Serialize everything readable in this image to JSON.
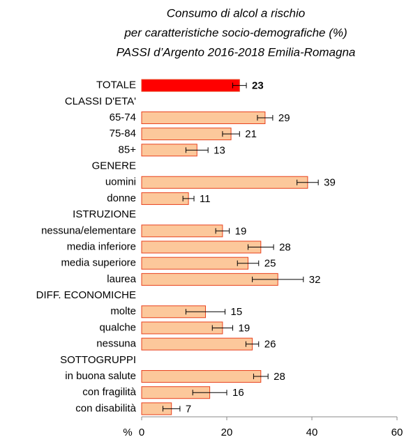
{
  "chart_data": {
    "type": "bar",
    "orientation": "horizontal",
    "title": [
      "Consumo di alcol a rischio",
      "per caratteristiche socio-demografiche (%)",
      "PASSI d’Argento 2016-2018  Emilia-Romagna"
    ],
    "xlabel": "%",
    "categories": [
      "TOTALE",
      "CLASSI D'ETA'",
      "65-74",
      "75-84",
      "85+",
      "GENERE",
      "uomini",
      "donne",
      "ISTRUZIONE",
      "nessuna/elementare",
      "media inferiore",
      "media superiore",
      "laurea",
      "DIFF. ECONOMICHE",
      "molte",
      "qualche",
      "nessuna",
      "SOTTOGRUPPI",
      "in buona salute",
      "con fragilità",
      "con disabilità"
    ],
    "values": [
      23,
      null,
      29,
      21,
      13,
      null,
      39,
      11,
      null,
      19,
      28,
      25,
      32,
      null,
      15,
      19,
      26,
      null,
      28,
      16,
      7
    ],
    "errors": [
      1.6,
      null,
      1.8,
      2,
      2.6,
      null,
      2.5,
      1.3,
      null,
      1.6,
      3,
      2.5,
      6,
      null,
      4.6,
      2.4,
      1.5,
      null,
      1.7,
      4,
      2
    ],
    "colors": [
      "#ff0000",
      null,
      "#fcc89b",
      "#fcc89b",
      "#fcc89b",
      null,
      "#fcc89b",
      "#fcc89b",
      null,
      "#fcc89b",
      "#fcc89b",
      "#fcc89b",
      "#fcc89b",
      null,
      "#fcc89b",
      "#fcc89b",
      "#fcc89b",
      null,
      "#fcc89b",
      "#fcc89b",
      "#fcc89b"
    ],
    "edge_color": "#e8401c",
    "xlim": [
      0,
      60
    ],
    "xticks": [
      0,
      20,
      40,
      60
    ],
    "grid": false
  }
}
